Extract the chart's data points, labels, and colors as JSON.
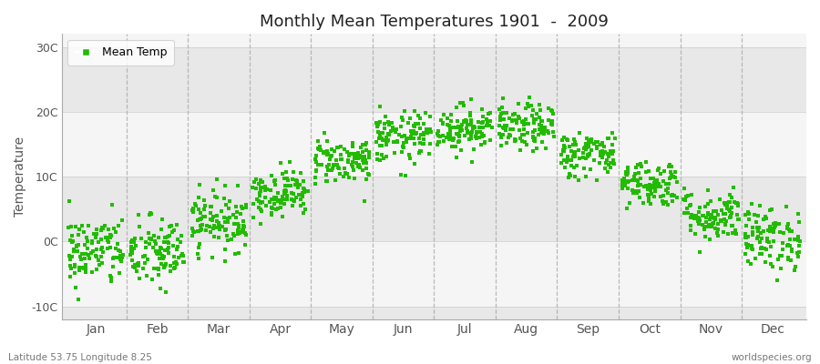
{
  "title": "Monthly Mean Temperatures 1901  -  2009",
  "ylabel": "Temperature",
  "xlabel_months": [
    "Jan",
    "Feb",
    "Mar",
    "Apr",
    "May",
    "Jun",
    "Jul",
    "Aug",
    "Sep",
    "Oct",
    "Nov",
    "Dec"
  ],
  "ytick_labels": [
    "-10C",
    "0C",
    "10C",
    "20C",
    "30C"
  ],
  "ytick_values": [
    -10,
    0,
    10,
    20,
    30
  ],
  "ylim": [
    -12,
    32
  ],
  "xlim": [
    -0.05,
    12.05
  ],
  "legend_label": "Mean Temp",
  "marker_color": "#22bb00",
  "marker_size": 3.5,
  "background_color": "#ffffff",
  "plot_bg_color": "#ffffff",
  "band_color_light": "#f5f5f5",
  "band_color_dark": "#e8e8e8",
  "footer_left": "Latitude 53.75 Longitude 8.25",
  "footer_right": "worldspecies.org",
  "monthly_means": [
    -1.5,
    -1.8,
    3.2,
    7.5,
    12.5,
    16.0,
    17.5,
    17.5,
    13.5,
    9.0,
    4.0,
    0.5
  ],
  "monthly_std": [
    2.8,
    2.8,
    2.3,
    1.8,
    1.8,
    2.0,
    1.8,
    1.8,
    1.8,
    1.8,
    2.0,
    2.5
  ],
  "n_years": 109,
  "seed": 42
}
